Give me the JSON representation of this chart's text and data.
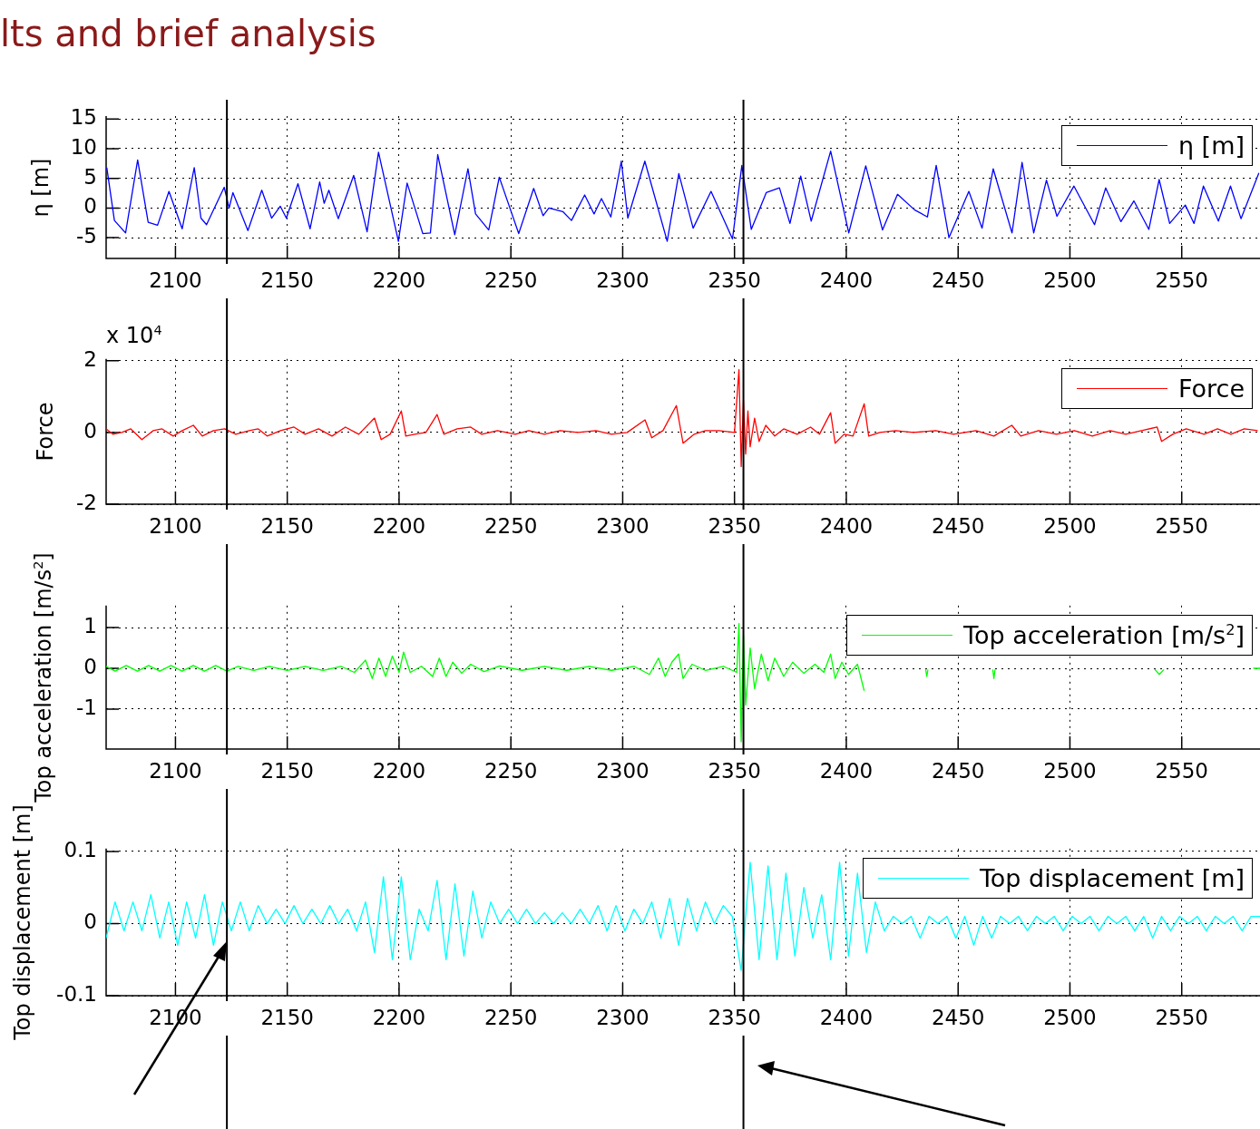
{
  "chart_data": [
    {
      "type": "line",
      "title": "lts and brief analysis",
      "ylabel": "η [m]",
      "xlim": [
        2069,
        2585
      ],
      "xticks": [
        2100,
        2150,
        2200,
        2250,
        2300,
        2350,
        2400,
        2450,
        2500,
        2550
      ],
      "ylim": [
        -8.5,
        15.5
      ],
      "yticks": [
        -5,
        0,
        5,
        10,
        15
      ],
      "grid": true,
      "legend": "top right",
      "ref_lines": [
        {
          "axis": "x",
          "value": 2123
        },
        {
          "axis": "x",
          "value": 2354
        }
      ],
      "series": [
        {
          "name": "η [m]",
          "color": "#0000ff",
          "x": [
            2069.3,
            2072.7,
            2077.7,
            2083.1,
            2087.8,
            2092.0,
            2097.1,
            2103,
            2108.4,
            2111.4,
            2113.9,
            2121.8,
            2124,
            2125.7,
            2132.4,
            2138.6,
            2143,
            2146.9,
            2149.6,
            2154.8,
            2160.2,
            2164.5,
            2166.5,
            2168.6,
            2172.8,
            2179.7,
            2185.7,
            2190.8,
            2199.7,
            2203.6,
            2210.6,
            2214,
            2217.3,
            2224.9,
            2230.8,
            2234.2,
            2240.1,
            2244.8,
            2253.5,
            2260.2,
            2264.4,
            2267,
            2273.2,
            2277.1,
            2283,
            2287.2,
            2290.5,
            2294.7,
            2299.4,
            2302.3,
            2309.9,
            2319.9,
            2325.1,
            2331.5,
            2339.5,
            2349.1,
            2353.3,
            2357.5,
            2364.2,
            2370.1,
            2374.8,
            2379.6,
            2384.3,
            2393,
            2401.1,
            2408.7,
            2416.2,
            2422.9,
            2430.5,
            2436.3,
            2440.2,
            2445.9,
            2454.8,
            2460.7,
            2465.7,
            2474.1,
            2478.6,
            2483.8,
            2489.5,
            2494.2,
            2501.8,
            2511,
            2516,
            2522.8,
            2528.6,
            2535.3,
            2539.9,
            2544.6,
            2551.6,
            2555.5,
            2559.7,
            2566.4,
            2571.8,
            2576.5,
            2584.5
          ],
          "values": [
            6.8,
            -2.1,
            -4.2,
            8.1,
            -2.4,
            -2.9,
            2.8,
            -3.5,
            6.8,
            -1.7,
            -2.8,
            3.5,
            0,
            2.6,
            -3.8,
            3.0,
            -1.7,
            0.3,
            -1.7,
            4.1,
            -3.5,
            4.4,
            0.8,
            3.0,
            -1.8,
            5.5,
            -4.0,
            9.4,
            -5.6,
            4.2,
            -4.3,
            -4.2,
            9.0,
            -4.5,
            6.6,
            -1.0,
            -3.7,
            5.2,
            -4.3,
            3.3,
            -1.3,
            0,
            -0.6,
            -2.1,
            2.2,
            -1.0,
            1.6,
            -1.5,
            7.9,
            -1.7,
            7.9,
            -5.6,
            5.8,
            -3.4,
            2.8,
            -5.2,
            7.2,
            -3.6,
            2.6,
            3.4,
            -2.6,
            5.4,
            -2.2,
            9.6,
            -4.2,
            7.1,
            -3.7,
            2.3,
            -0.3,
            -1.5,
            7.2,
            -5.0,
            2.8,
            -3.4,
            6.6,
            -4.2,
            7.7,
            -4.2,
            4.7,
            -1.4,
            3.7,
            -2.8,
            3.4,
            -2.3,
            1.2,
            -3.6,
            4.8,
            -2.6,
            0.5,
            -2.6,
            3.7,
            -2.2,
            3.7,
            -1.8,
            5.9
          ]
        }
      ]
    },
    {
      "type": "line",
      "ylabel": "Force",
      "annotations": [
        "x 10$^{4}$"
      ],
      "xlim": [
        2069,
        2585
      ],
      "xticks": [
        2100,
        2150,
        2200,
        2250,
        2300,
        2350,
        2400,
        2450,
        2500,
        2550
      ],
      "ylim": [
        -2,
        2.05
      ],
      "yticks": [
        -2,
        0,
        2
      ],
      "grid": true,
      "legend": "top right",
      "ref_lines": [
        {
          "axis": "x",
          "value": 2123
        },
        {
          "axis": "x",
          "value": 2354
        }
      ],
      "series": [
        {
          "name": "Force",
          "color": "#ff0000",
          "x": [
            2069,
            2072,
            2076,
            2080,
            2085,
            2090,
            2094,
            2099,
            2103,
            2108,
            2112,
            2117,
            2122,
            2127,
            2133,
            2137,
            2141,
            2147,
            2153,
            2158,
            2164,
            2170,
            2176,
            2182,
            2189,
            2192,
            2196,
            2201,
            2203,
            2207,
            2212,
            2217,
            2220,
            2226,
            2232,
            2237,
            2244,
            2252,
            2258,
            2265,
            2272,
            2280,
            2288,
            2295,
            2302,
            2310,
            2313,
            2318,
            2324,
            2327,
            2332,
            2337,
            2343,
            2350,
            2352,
            2353,
            2354,
            2355,
            2356,
            2357,
            2359,
            2361,
            2364,
            2368,
            2372,
            2378,
            2384,
            2388,
            2393,
            2395,
            2399,
            2403,
            2408,
            2410,
            2415,
            2422,
            2430,
            2440,
            2448,
            2458,
            2466,
            2474,
            2478,
            2486,
            2494,
            2502,
            2510,
            2518,
            2525,
            2532,
            2539,
            2541,
            2546,
            2552,
            2560,
            2566,
            2572,
            2578,
            2584
          ],
          "values": [
            0.1,
            -0.05,
            0,
            0.1,
            -0.2,
            0.05,
            0.1,
            -0.1,
            0.05,
            0.2,
            -0.1,
            0.05,
            0.1,
            -0.05,
            0.05,
            0.1,
            -0.1,
            0.05,
            0.15,
            -0.05,
            0.1,
            -0.1,
            0.15,
            -0.05,
            0.4,
            -0.2,
            -0.05,
            0.6,
            -0.1,
            -0.05,
            0,
            0.5,
            -0.05,
            0.1,
            0.15,
            -0.05,
            0.05,
            -0.05,
            0.05,
            -0.05,
            0.05,
            0,
            0.05,
            -0.05,
            0,
            0.35,
            -0.15,
            0.05,
            0.75,
            -0.3,
            -0.05,
            0.05,
            0.05,
            0,
            1.75,
            -0.95,
            0.9,
            -0.6,
            0.6,
            -0.4,
            0.4,
            -0.25,
            0.2,
            -0.1,
            0.1,
            -0.05,
            0.15,
            -0.05,
            0.55,
            -0.3,
            -0.05,
            -0.1,
            0.8,
            -0.1,
            0,
            0.05,
            0,
            0.05,
            -0.05,
            0.05,
            -0.1,
            0.2,
            -0.1,
            0.05,
            -0.05,
            0.05,
            -0.1,
            0.05,
            -0.05,
            0.05,
            0.15,
            -0.25,
            -0.05,
            0.1,
            -0.05,
            0.1,
            -0.05,
            0.1,
            0.05
          ]
        }
      ]
    },
    {
      "type": "line",
      "ylabel": "Top acceleration [m/s$^{2}$]",
      "xlim": [
        2069,
        2585
      ],
      "xticks": [
        2100,
        2150,
        2200,
        2250,
        2300,
        2350,
        2400,
        2450,
        2500,
        2550
      ],
      "ylim": [
        -1.98,
        1.54
      ],
      "yticks": [
        -1,
        0,
        1
      ],
      "grid": true,
      "legend": "top right",
      "ref_lines": [
        {
          "axis": "x",
          "value": 2123
        },
        {
          "axis": "x",
          "value": 2354
        }
      ],
      "series": [
        {
          "name": "Top acceleration [m/s$^{2}$]",
          "color": "#00ff00",
          "x": [
            2069,
            2073,
            2078,
            2083,
            2088,
            2093,
            2098,
            2103,
            2108,
            2113,
            2118,
            2123,
            2128,
            2135,
            2142,
            2150,
            2158,
            2166,
            2174,
            2180,
            2185,
            2188,
            2191,
            2194,
            2197,
            2200,
            2202,
            2205,
            2210,
            2215,
            2218,
            2221,
            2224,
            2228,
            2232,
            2238,
            2245,
            2255,
            2265,
            2275,
            2285,
            2295,
            2305,
            2312,
            2316,
            2319,
            2322,
            2325,
            2327,
            2331,
            2337,
            2345,
            2351,
            2352,
            2353,
            2354,
            2355,
            2357,
            2359,
            2362,
            2365,
            2368,
            2372,
            2376,
            2381,
            2386,
            2390,
            2393,
            2395,
            2398,
            2401,
            2405,
            2408,
            2410,
            2435.5,
            2436,
            2436.5,
            2440,
            2465.5,
            2466,
            2466.5,
            2470,
            2538,
            2540,
            2542,
            2545,
            2582,
            2585
          ],
          "values": [
            0.05,
            -0.07,
            0.07,
            -0.07,
            0.07,
            -0.07,
            0.07,
            -0.07,
            0.07,
            -0.07,
            0.07,
            -0.07,
            0.05,
            -0.05,
            0.05,
            -0.05,
            0.05,
            -0.05,
            0.05,
            -0.1,
            0.2,
            -0.25,
            0.25,
            -0.2,
            0.3,
            -0.1,
            0.4,
            -0.1,
            0.05,
            -0.2,
            0.25,
            -0.2,
            0.15,
            -0.12,
            0.1,
            -0.08,
            0.06,
            -0.05,
            0.05,
            -0.05,
            0.05,
            -0.05,
            0.05,
            -0.15,
            0.25,
            -0.2,
            0.15,
            0.35,
            -0.25,
            0.1,
            -0.05,
            0.05,
            -0.1,
            1.1,
            -1.8,
            0.8,
            -0.9,
            0.5,
            -0.5,
            0.35,
            -0.3,
            0.25,
            -0.2,
            0.15,
            -0.12,
            0.1,
            -0.1,
            0.35,
            -0.25,
            0.15,
            -0.15,
            0.1,
            -0.55,
            null,
            -0.03,
            -0.2,
            -0.03,
            null,
            -0.03,
            -0.25,
            -0.03,
            null,
            -0.03,
            -0.15,
            -0.03,
            null,
            0,
            0
          ]
        }
      ]
    },
    {
      "type": "line",
      "ylabel": "Top displacement [m]",
      "xlim": [
        2069,
        2585
      ],
      "xticks": [
        2100,
        2150,
        2200,
        2250,
        2300,
        2350,
        2400,
        2450,
        2500,
        2550
      ],
      "ylim": [
        -0.1,
        0.104
      ],
      "yticks": [
        -0.1,
        0,
        0.1
      ],
      "grid": true,
      "legend": "top right",
      "ref_lines": [
        {
          "axis": "x",
          "value": 2123
        },
        {
          "axis": "x",
          "value": 2354
        }
      ],
      "series": [
        {
          "name": "Top displacement [m]",
          "color": "#00ffff",
          "x": [
            2069,
            2073,
            2077,
            2081,
            2085,
            2089,
            2093,
            2097,
            2101,
            2105,
            2109,
            2113,
            2117,
            2121,
            2125,
            2129,
            2133,
            2137,
            2141,
            2145,
            2149,
            2153,
            2157,
            2161,
            2165,
            2169,
            2173,
            2177,
            2181,
            2185,
            2189,
            2193,
            2197,
            2201,
            2205,
            2209,
            2213,
            2217,
            2221,
            2225,
            2229,
            2233,
            2237,
            2241,
            2245,
            2249,
            2253,
            2257,
            2261,
            2265,
            2269,
            2273,
            2277,
            2281,
            2285,
            2289,
            2293,
            2297,
            2301,
            2305,
            2309,
            2313,
            2317,
            2321,
            2325,
            2329,
            2333,
            2337,
            2341,
            2345,
            2349,
            2353,
            2357,
            2361,
            2365,
            2369,
            2373,
            2377,
            2381,
            2385,
            2389,
            2393,
            2397,
            2401,
            2405,
            2409,
            2413,
            2417,
            2421,
            2425,
            2429,
            2433,
            2437,
            2441,
            2445,
            2449,
            2453,
            2457,
            2461,
            2465,
            2469,
            2473,
            2477,
            2481,
            2485,
            2489,
            2493,
            2497,
            2501,
            2505,
            2509,
            2513,
            2517,
            2521,
            2525,
            2529,
            2533,
            2537,
            2541,
            2545,
            2549,
            2553,
            2557,
            2561,
            2565,
            2569,
            2573,
            2577,
            2581,
            2585
          ],
          "values": [
            -0.02,
            0.03,
            -0.01,
            0.03,
            -0.01,
            0.04,
            -0.02,
            0.03,
            -0.03,
            0.03,
            -0.02,
            0.04,
            -0.03,
            0.03,
            -0.01,
            0.03,
            -0.01,
            0.025,
            0,
            0.02,
            0,
            0.025,
            0,
            0.02,
            0,
            0.025,
            0,
            0.02,
            -0.01,
            0.03,
            -0.04,
            0.065,
            -0.05,
            0.065,
            -0.05,
            0.02,
            -0.01,
            0.06,
            -0.05,
            0.055,
            -0.045,
            0.045,
            -0.02,
            0.03,
            0,
            0.02,
            0,
            0.02,
            0,
            0.015,
            0,
            0.015,
            0,
            0.02,
            0,
            0.025,
            -0.01,
            0.025,
            -0.01,
            0.02,
            0,
            0.03,
            -0.02,
            0.035,
            -0.03,
            0.035,
            -0.01,
            0.03,
            0,
            0.025,
            0.01,
            -0.065,
            0.085,
            -0.05,
            0.08,
            -0.05,
            0.07,
            -0.045,
            0.05,
            -0.02,
            0.04,
            -0.05,
            0.085,
            -0.045,
            0.07,
            -0.04,
            0.03,
            -0.01,
            0.01,
            0,
            0.01,
            -0.02,
            0.01,
            0,
            0.01,
            -0.02,
            0.01,
            -0.03,
            0.01,
            -0.02,
            0.01,
            0,
            0.01,
            -0.01,
            0.01,
            0,
            0.01,
            -0.01,
            0.01,
            0,
            0.01,
            -0.01,
            0.01,
            0,
            0.01,
            -0.01,
            0.01,
            -0.02,
            0.01,
            -0.01,
            0.01,
            0,
            0.01,
            -0.01,
            0.01,
            0,
            0.01,
            -0.01,
            0.01,
            0.01
          ]
        }
      ]
    }
  ]
}
